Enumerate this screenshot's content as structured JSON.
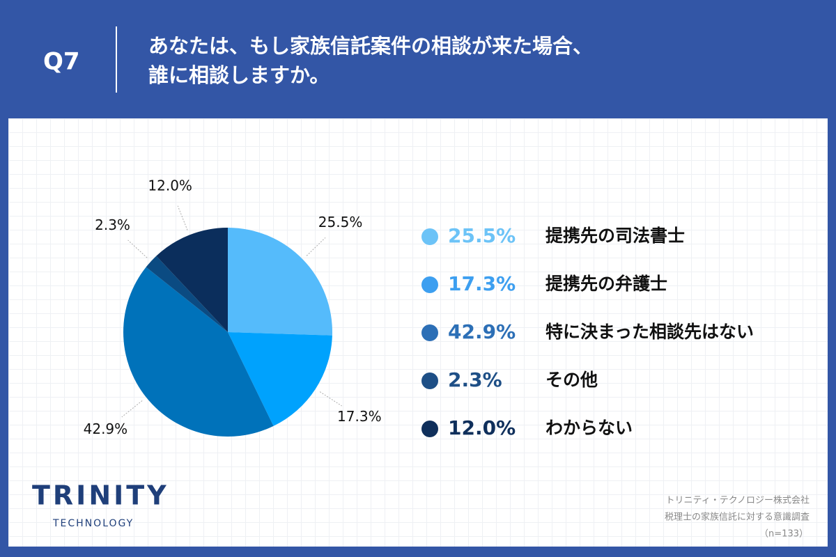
{
  "header": {
    "label": "Q7",
    "title_lines": [
      "あなたは、もし家族信託案件の相談が来た場合、",
      "誰に相談しますか。"
    ]
  },
  "chart_data": {
    "type": "pie",
    "categories": [
      "提携先の司法書士",
      "提携先の弁護士",
      "特に決まった相談先はない",
      "その他",
      "わからない"
    ],
    "values": [
      25.5,
      17.3,
      42.9,
      2.3,
      12.0
    ],
    "value_labels": [
      "25.5%",
      "17.3%",
      "42.9%",
      "2.3%",
      "12.0%"
    ],
    "colors": [
      "#55bbfb",
      "#00a2fd",
      "#0072ba",
      "#0b4b82",
      "#0b2e5c"
    ],
    "legend_colors": [
      "#6cc3f7",
      "#3d9ff0",
      "#2c6fb6",
      "#1e4f86",
      "#0f2f5b"
    ]
  },
  "footer": {
    "logo": "TRINITY",
    "logo_sub": "TECHNOLOGY",
    "source_lines": [
      "トリニティ・テクノロジー株式会社",
      "税理士の家族信託に対する意識調査",
      "（n=133）"
    ]
  }
}
